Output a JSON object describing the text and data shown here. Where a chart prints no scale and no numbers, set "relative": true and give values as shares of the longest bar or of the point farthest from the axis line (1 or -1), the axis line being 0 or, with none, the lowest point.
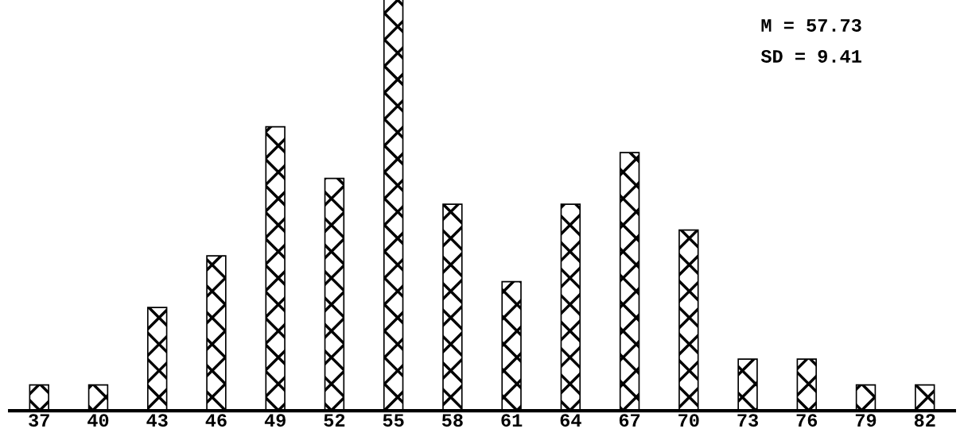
{
  "chart_data": {
    "type": "bar",
    "relative": true,
    "marker": "cross",
    "color": "#000000",
    "categories": [
      "37",
      "40",
      "43",
      "46",
      "49",
      "52",
      "55",
      "58",
      "61",
      "64",
      "67",
      "70",
      "73",
      "76",
      "79",
      "82"
    ],
    "values": [
      0.0625,
      0.0625,
      0.25,
      0.375,
      0.6875,
      0.5625,
      1,
      0.5,
      0.3125,
      0.5,
      0.625,
      0.4375,
      0.125,
      0.125,
      0.0625,
      0.0625
    ],
    "annotations": [
      "M = 57.73",
      "SD = 9.41"
    ]
  }
}
